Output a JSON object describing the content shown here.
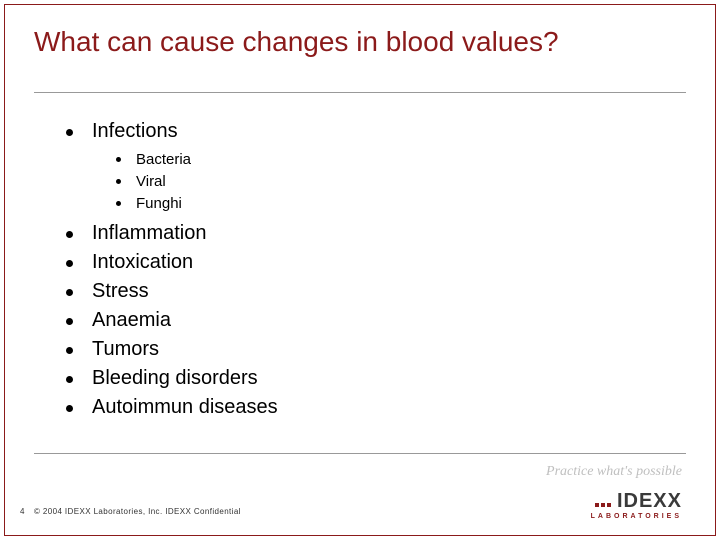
{
  "title": "What can cause changes in blood values?",
  "bullets": {
    "items": [
      {
        "label": "Infections",
        "sub": [
          {
            "label": "Bacteria"
          },
          {
            "label": "Viral"
          },
          {
            "label": "Funghi"
          }
        ]
      },
      {
        "label": "Inflammation"
      },
      {
        "label": "Intoxication"
      },
      {
        "label": "Stress"
      },
      {
        "label": "Anaemia"
      },
      {
        "label": "Tumors"
      },
      {
        "label": "Bleeding disorders"
      },
      {
        "label": "Autoimmun diseases"
      }
    ]
  },
  "tagline": "Practice what's possible",
  "footer": {
    "page": "4",
    "text": "© 2004 IDEXX Laboratories, Inc.  IDEXX Confidential"
  },
  "logo": {
    "main": "IDEXX",
    "sub": "LABORATORIES"
  },
  "colors": {
    "accent": "#8b1a1a",
    "text": "#000000",
    "rule": "#999999",
    "tagline": "#bfbfbf"
  }
}
